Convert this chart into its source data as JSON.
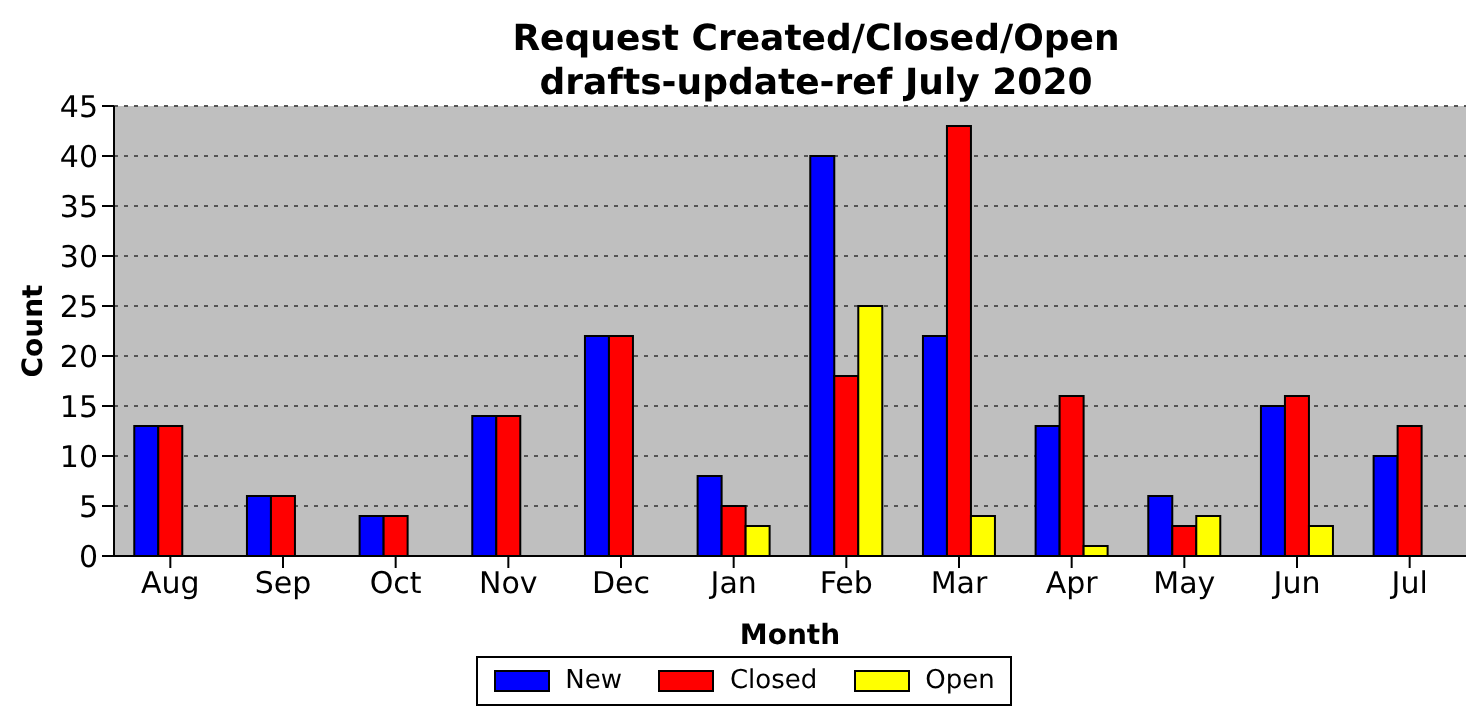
{
  "chart_data": {
    "type": "bar",
    "title": "Request Created/Closed/Open",
    "subtitle": "drafts-update-ref July 2020",
    "xlabel": "Month",
    "ylabel": "Count",
    "categories": [
      "Aug",
      "Sep",
      "Oct",
      "Nov",
      "Dec",
      "Jan",
      "Feb",
      "Mar",
      "Apr",
      "May",
      "Jun",
      "Jul"
    ],
    "series": [
      {
        "name": "New",
        "color": "#0000ff",
        "values": [
          13,
          6,
          4,
          14,
          22,
          8,
          40,
          22,
          13,
          6,
          15,
          10
        ]
      },
      {
        "name": "Closed",
        "color": "#ff0000",
        "values": [
          13,
          6,
          4,
          14,
          22,
          5,
          18,
          43,
          16,
          3,
          16,
          13
        ]
      },
      {
        "name": "Open",
        "color": "#ffff00",
        "values": [
          0,
          0,
          0,
          0,
          0,
          3,
          25,
          4,
          1,
          4,
          3,
          0
        ]
      }
    ],
    "ylim": [
      0,
      45
    ],
    "yticks": [
      0,
      5,
      10,
      15,
      20,
      25,
      30,
      35,
      40,
      45
    ],
    "grid": "y",
    "legend": "bottom"
  }
}
